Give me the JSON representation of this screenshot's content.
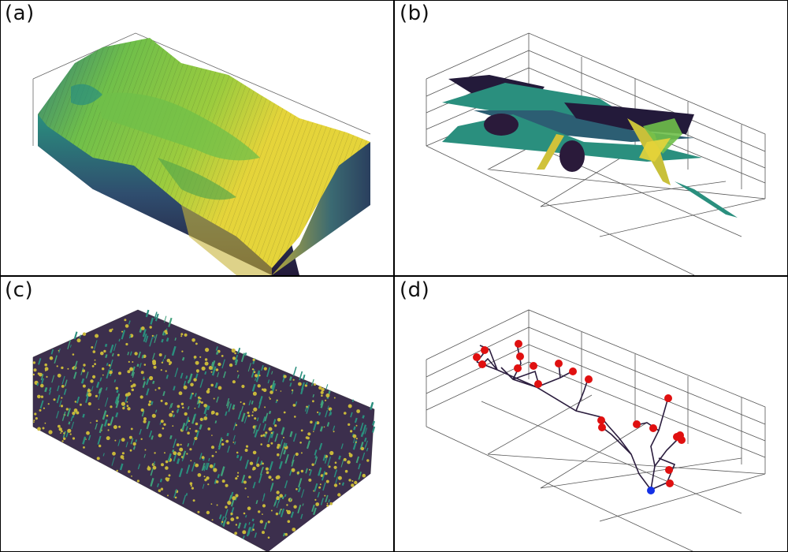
{
  "panels": [
    {
      "label": "(a)"
    },
    {
      "label": "(b)"
    },
    {
      "label": "(c)"
    },
    {
      "label": "(d)"
    }
  ],
  "colors": {
    "yellow": "#e5d43a",
    "green": "#6fbf4a",
    "teal": "#2a8f7e",
    "navy": "#3b2d5e",
    "dark": "#231a3a",
    "red": "#e01010",
    "blue": "#1430e6"
  }
}
